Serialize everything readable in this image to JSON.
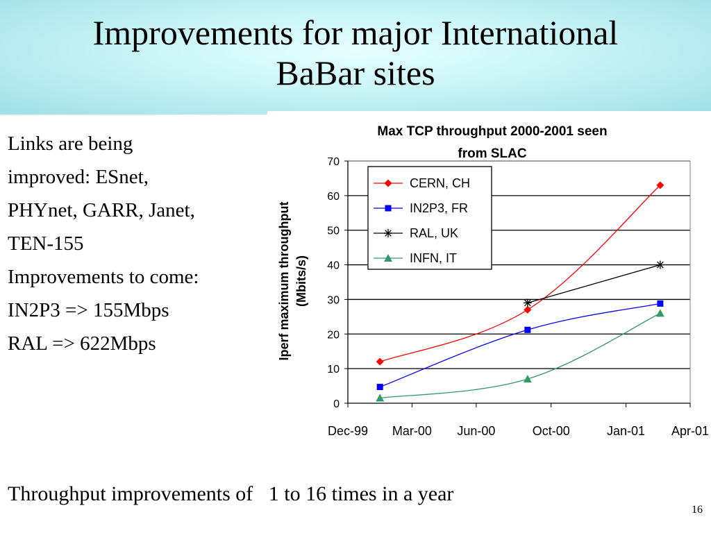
{
  "slide": {
    "title_line1": "Improvements for major International",
    "title_line2": "BaBar sites",
    "body_lines": [
      "Links are being",
      "improved: ESnet,",
      "PHYnet, GARR, Janet,",
      "TEN-155",
      "Improvements to come:",
      "IN2P3 => 155Mbps",
      "RAL => 622Mbps"
    ],
    "bottom_text": "Throughput improvements of   1 to 16 times in a year",
    "page_number": "16"
  },
  "chart_data": {
    "type": "line",
    "title": "Max TCP throughput 2000-2001 seen from SLAC",
    "title_lines": [
      "Max TCP throughput 2000-2001 seen",
      "from SLAC"
    ],
    "ylabel_lines": [
      "Iperf maximum throughput",
      "(Mbits/s)"
    ],
    "xlabel": "",
    "ylim": [
      0,
      70
    ],
    "yticks": [
      0,
      10,
      20,
      30,
      40,
      50,
      60,
      70
    ],
    "xticks": [
      "Dec-99",
      "Mar-00",
      "Jun-00",
      "Oct-00",
      "Jan-01",
      "Apr-01"
    ],
    "x_range_months": [
      0,
      16
    ],
    "xtick_months": [
      0,
      3,
      6,
      9.5,
      13,
      16
    ],
    "grid": true,
    "legend_position": "top-left",
    "series": [
      {
        "name": "CERN, CH",
        "color": "#ff0000",
        "marker": "diamond",
        "points": [
          {
            "x": 1.5,
            "y": 12
          },
          {
            "x": 8.4,
            "y": 27
          },
          {
            "x": 14.6,
            "y": 63
          }
        ]
      },
      {
        "name": "IN2P3, FR",
        "color": "#0000ff",
        "marker": "square",
        "points": [
          {
            "x": 1.5,
            "y": 4.7
          },
          {
            "x": 8.4,
            "y": 21.2
          },
          {
            "x": 14.6,
            "y": 28.8
          }
        ]
      },
      {
        "name": "RAL, UK",
        "color": "#000000",
        "marker": "asterisk",
        "points": [
          {
            "x": 8.4,
            "y": 29
          },
          {
            "x": 14.6,
            "y": 40
          }
        ]
      },
      {
        "name": "INFN, IT",
        "color": "#339966",
        "marker": "triangle",
        "points": [
          {
            "x": 1.5,
            "y": 1.5
          },
          {
            "x": 8.4,
            "y": 7
          },
          {
            "x": 14.6,
            "y": 26
          }
        ]
      }
    ]
  }
}
